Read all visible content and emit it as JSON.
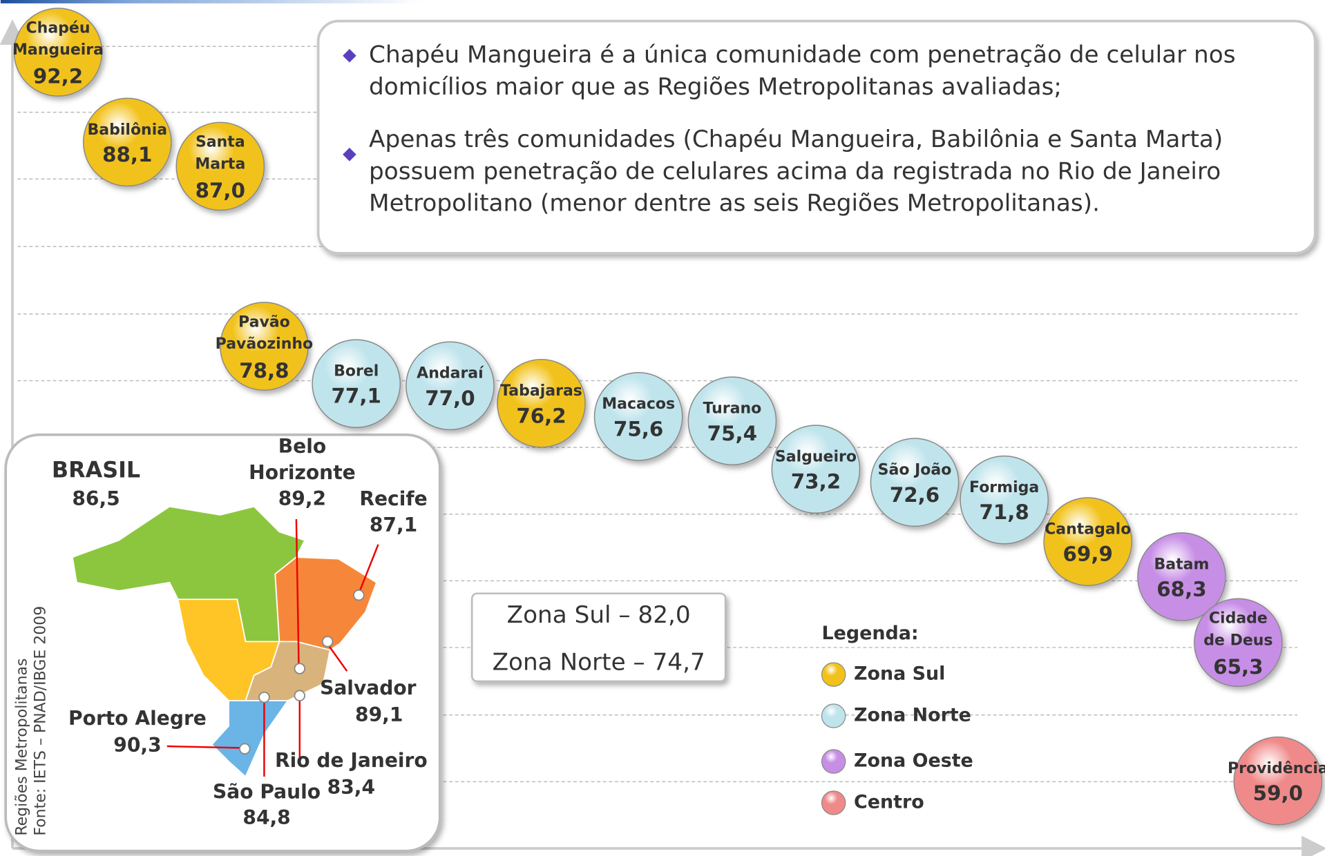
{
  "chart_data": {
    "type": "bubble",
    "categories": [
      "Chapéu Mangueira",
      "Babilônia",
      "Santa Marta",
      "Pavão Pavãozinho",
      "Borel",
      "Andaraí",
      "Tabajaras",
      "Macacos",
      "Turano",
      "Salgueiro",
      "São João",
      "Formiga",
      "Cantagalo",
      "Batam",
      "Cidade de Deus",
      "Providência"
    ],
    "series": [
      {
        "name": "Zona Sul",
        "color": "#f2c21b",
        "values": [
          92.2,
          88.1,
          87.0,
          78.8,
          null,
          null,
          76.2,
          null,
          null,
          null,
          null,
          null,
          69.9,
          null,
          null,
          null
        ],
        "value_labels": [
          "92,2",
          "88,1",
          "87,0",
          "78,8",
          null,
          null,
          "76,2",
          null,
          null,
          null,
          null,
          null,
          "69,9",
          null,
          null,
          null
        ]
      },
      {
        "name": "Zona Norte",
        "color": "#bfe4ec",
        "values": [
          null,
          null,
          null,
          null,
          77.1,
          77.0,
          null,
          75.6,
          75.4,
          73.2,
          72.6,
          71.8,
          null,
          null,
          null,
          null
        ],
        "value_labels": [
          null,
          null,
          null,
          null,
          "77,1",
          "77,0",
          null,
          "75,6",
          "75,4",
          "73,2",
          "72,6",
          "71,8",
          null,
          null,
          null,
          null
        ]
      },
      {
        "name": "Zona Oeste",
        "color": "#c78ee6",
        "values": [
          null,
          null,
          null,
          null,
          null,
          null,
          null,
          null,
          null,
          null,
          null,
          null,
          null,
          68.3,
          65.3,
          null
        ],
        "value_labels": [
          null,
          null,
          null,
          null,
          null,
          null,
          null,
          null,
          null,
          null,
          null,
          null,
          null,
          "68,3",
          "65,3",
          null
        ]
      },
      {
        "name": "Centro",
        "color": "#f08a8a",
        "values": [
          null,
          null,
          null,
          null,
          null,
          null,
          null,
          null,
          null,
          null,
          null,
          null,
          null,
          null,
          null,
          59.0
        ],
        "value_labels": [
          null,
          null,
          null,
          null,
          null,
          null,
          null,
          null,
          null,
          null,
          null,
          null,
          null,
          null,
          null,
          "59,0"
        ]
      }
    ],
    "ylim": [
      56.5,
      95
    ],
    "legend_title": "Legenda:",
    "notes": [
      "Chapéu Mangueira é a única comunidade com penetração de celular nos domicílios maior que as Regiões Metropolitanas avaliadas;",
      "Apenas três comunidades (Chapéu Mangueira, Babilônia e Santa Marta) possuem penetração de celulares acima da registrada no Rio de Janeiro Metropolitano (menor dentre as seis Regiões Metropolitanas)."
    ],
    "summary": [
      "Zona Sul – 82,0",
      "Zona Norte – 74,7"
    ],
    "map": {
      "caption": [
        "Regiões Metropolitanas",
        "Fonte: IETS – PNAD/IBGE 2009"
      ],
      "regions": [
        {
          "name": "BRASIL",
          "value_label": "86,5"
        },
        {
          "name": "Belo Horizonte",
          "value_label": "89,2"
        },
        {
          "name": "Recife",
          "value_label": "87,1"
        },
        {
          "name": "Salvador",
          "value_label": "89,1"
        },
        {
          "name": "Porto Alegre",
          "value_label": "90,3"
        },
        {
          "name": "Rio de Janeiro",
          "value_label": "83,4"
        },
        {
          "name": "São Paulo",
          "value_label": "84,8"
        }
      ]
    }
  }
}
